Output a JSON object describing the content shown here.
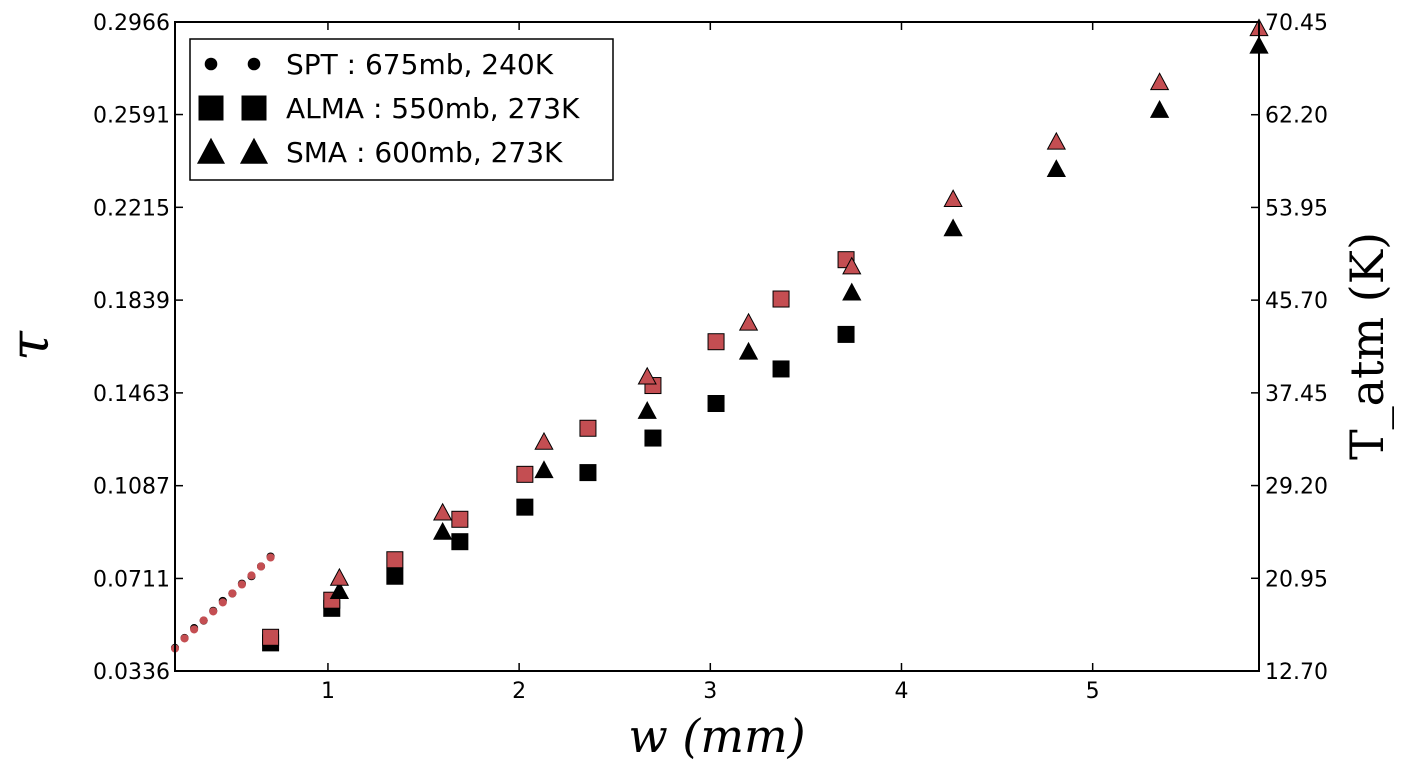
{
  "chart_data": {
    "type": "scatter",
    "xlabel": "w (mm)",
    "ylabel_left": "τ",
    "ylabel_right": "T_atm (K)",
    "xlim": [
      0.2,
      5.87
    ],
    "ylim_left": [
      0.0336,
      0.2966
    ],
    "ylim_right": [
      12.7,
      70.45
    ],
    "x_ticks": [
      1,
      2,
      3,
      4,
      5
    ],
    "x_tick_labels": [
      "1",
      "2",
      "3",
      "4",
      "5"
    ],
    "y_left_ticks": [
      0.0336,
      0.0711,
      0.1087,
      0.1463,
      0.1839,
      0.2215,
      0.2591,
      0.2966
    ],
    "y_left_tick_labels": [
      "0.0336",
      "0.0711",
      "0.1087",
      "0.1463",
      "0.1839",
      "0.2215",
      "0.2591",
      "0.2966"
    ],
    "y_right_ticks": [
      12.7,
      20.95,
      29.2,
      37.45,
      45.7,
      53.95,
      62.2,
      70.45
    ],
    "y_right_tick_labels": [
      "12.70",
      "20.95",
      "29.20",
      "37.45",
      "45.70",
      "53.95",
      "62.20",
      "70.45"
    ],
    "grid": false,
    "legend_position": "top-left",
    "colors": {
      "tau": "#000000",
      "tatm": "#c44e52"
    },
    "legend": [
      {
        "label": "SPT : 675mb, 240K",
        "marker": "circle"
      },
      {
        "label": "ALMA : 550mb, 273K",
        "marker": "square"
      },
      {
        "label": "SMA : 600mb, 273K",
        "marker": "triangle"
      }
    ],
    "series": [
      {
        "name": "SPT : 675mb, 240K",
        "quantity": "tau",
        "marker": "circle",
        "x": [
          0.2,
          0.25,
          0.3,
          0.35,
          0.4,
          0.45,
          0.5,
          0.55,
          0.6,
          0.65,
          0.7
        ],
        "y": [
          0.043,
          0.047,
          0.051,
          0.054,
          0.058,
          0.062,
          0.065,
          0.069,
          0.072,
          0.076,
          0.08
        ]
      },
      {
        "name": "SPT : 675mb, 240K",
        "quantity": "tatm",
        "marker": "circle",
        "x": [
          0.2,
          0.25,
          0.3,
          0.35,
          0.4,
          0.45,
          0.5,
          0.55,
          0.6,
          0.65,
          0.7
        ],
        "y": [
          14.7,
          15.6,
          16.4,
          17.2,
          18.0,
          18.8,
          19.6,
          20.4,
          21.2,
          22.0,
          22.8
        ]
      },
      {
        "name": "ALMA : 550mb, 273K",
        "quantity": "tau",
        "marker": "square",
        "x": [
          0.7,
          1.02,
          1.35,
          1.69,
          2.03,
          2.36,
          2.7,
          3.03,
          3.37,
          3.71
        ],
        "y": [
          0.045,
          0.059,
          0.072,
          0.086,
          0.1,
          0.114,
          0.128,
          0.142,
          0.156,
          0.17
        ]
      },
      {
        "name": "ALMA : 550mb, 273K",
        "quantity": "tatm",
        "marker": "square",
        "x": [
          0.7,
          1.02,
          1.35,
          1.69,
          2.03,
          2.36,
          2.7,
          3.03,
          3.37,
          3.71
        ],
        "y": [
          15.7,
          19.0,
          22.6,
          26.2,
          30.2,
          34.3,
          38.1,
          42.0,
          45.8,
          49.3
        ]
      },
      {
        "name": "SMA : 600mb, 273K",
        "quantity": "tau",
        "marker": "triangle",
        "x": [
          1.06,
          1.6,
          2.13,
          2.67,
          3.2,
          3.74,
          4.27,
          4.81,
          5.35,
          5.87
        ],
        "y": [
          0.066,
          0.09,
          0.115,
          0.139,
          0.163,
          0.187,
          0.213,
          0.237,
          0.261,
          0.287
        ]
      },
      {
        "name": "SMA : 600mb, 273K",
        "quantity": "tatm",
        "marker": "triangle",
        "x": [
          1.06,
          1.6,
          2.13,
          2.67,
          3.2,
          3.74,
          4.27,
          4.81,
          5.35,
          5.87
        ],
        "y": [
          21.0,
          26.8,
          33.1,
          38.9,
          43.7,
          48.7,
          54.7,
          59.8,
          65.1,
          69.9
        ]
      }
    ]
  }
}
